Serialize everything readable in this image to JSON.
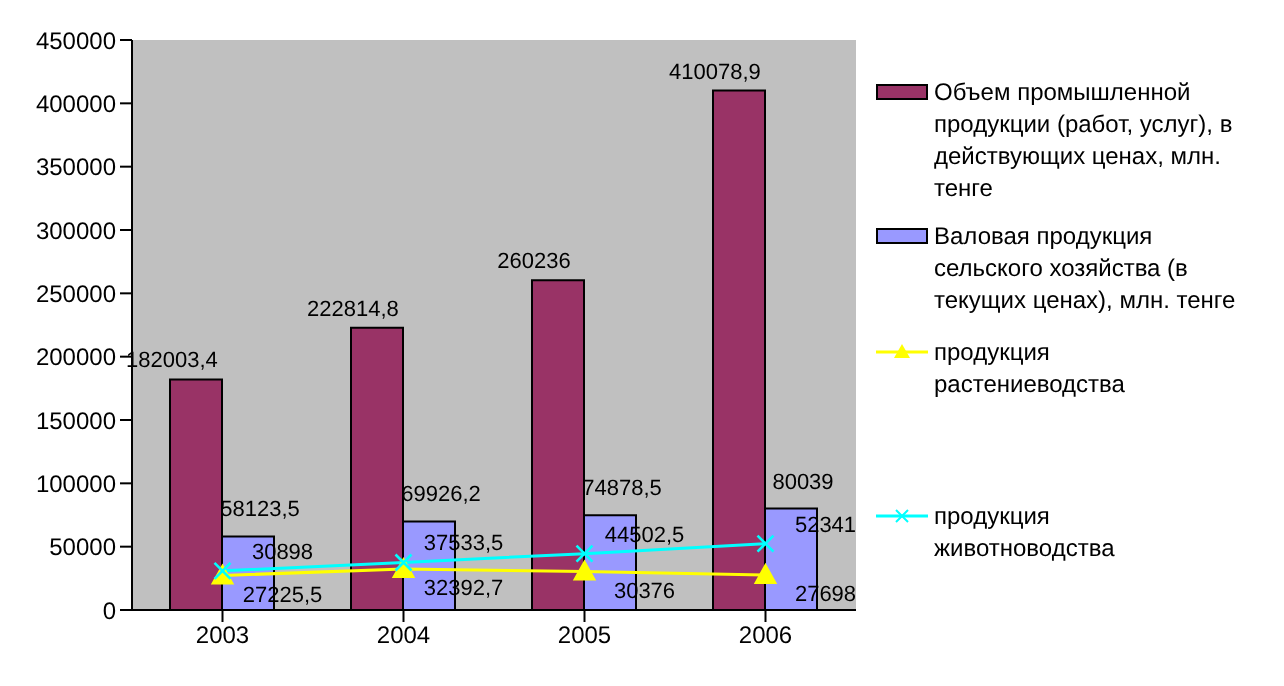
{
  "chart_data": {
    "type": "bar",
    "categories": [
      "2003",
      "2004",
      "2005",
      "2006"
    ],
    "series": [
      {
        "name": "Объем промышленной продукции (работ, услуг), в действующих ценах, млн. тенге",
        "color": "#993366",
        "values": [
          182003.4,
          222814.8,
          260236,
          410078.9
        ],
        "value_labels": [
          "182003,4",
          "222814,8",
          "260236",
          "410078,9"
        ]
      },
      {
        "name": "Валовая продукция сельского хозяйства (в текущих ценах), млн. тенге",
        "color": "#9999ff",
        "values": [
          58123.5,
          69926.2,
          74878.5,
          80039
        ],
        "value_labels": [
          "58123,5",
          "69926,2",
          "74878,5",
          "80039"
        ]
      },
      {
        "name": "продукция растениеводства",
        "type": "line",
        "color": "#ffff00",
        "marker": "triangle",
        "values": [
          27225.5,
          32392.7,
          30376,
          27698
        ],
        "value_labels": [
          "27225,5",
          "32392,7",
          "30376",
          "27698"
        ]
      },
      {
        "name": "продукция животноводства",
        "type": "line",
        "color": "#00ffff",
        "marker": "cross",
        "values": [
          30898,
          37533.5,
          44502.5,
          52341
        ],
        "value_labels": [
          "30898",
          "37533,5",
          "44502,5",
          "52341"
        ]
      }
    ],
    "ylim": [
      0,
      450000
    ],
    "yticks": [
      0,
      50000,
      100000,
      150000,
      200000,
      250000,
      300000,
      350000,
      400000,
      450000
    ],
    "legend": "right"
  }
}
